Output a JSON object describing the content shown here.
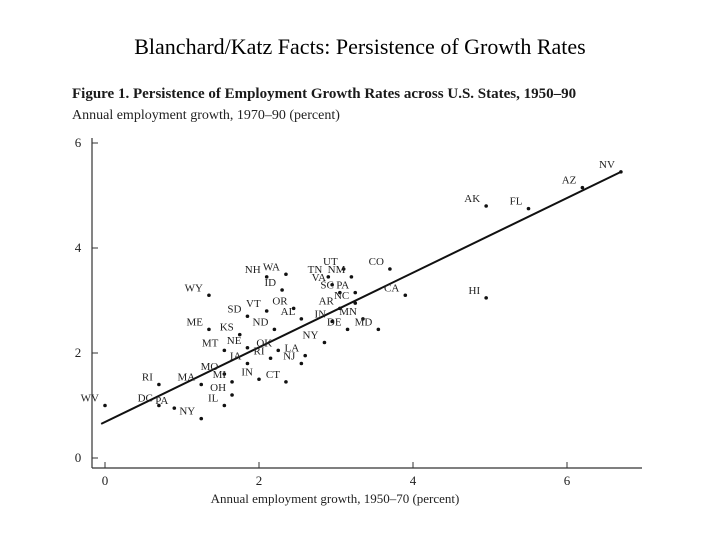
{
  "slide": {
    "title": "Blanchard/Katz Facts:  Persistence of Growth Rates"
  },
  "chart_data": {
    "type": "scatter",
    "title": "Figure 1.  Persistence of Employment Growth Rates across U.S. States, 1950–90",
    "ylabel": "Annual employment growth, 1970–90 (percent)",
    "xlabel": "Annual employment growth, 1950–70 (percent)",
    "xlim": [
      -0.2,
      6.8
    ],
    "ylim": [
      0,
      6
    ],
    "xticks": [
      0,
      2,
      4,
      6
    ],
    "yticks": [
      0,
      2,
      4,
      6
    ],
    "tick_labels_x": [
      "0",
      "2",
      "4",
      "6"
    ],
    "tick_labels_y": [
      "0",
      "2",
      "4",
      "6"
    ],
    "grid": false,
    "fit_line": {
      "x": [
        -0.05,
        6.7
      ],
      "y": [
        0.65,
        5.45
      ]
    },
    "points": [
      {
        "label": "NV",
        "x": 6.7,
        "y": 5.45
      },
      {
        "label": "AZ",
        "x": 6.2,
        "y": 5.15
      },
      {
        "label": "FL",
        "x": 5.5,
        "y": 4.75
      },
      {
        "label": "AK",
        "x": 4.95,
        "y": 4.8
      },
      {
        "label": "HI",
        "x": 4.95,
        "y": 3.05
      },
      {
        "label": "CA",
        "x": 3.9,
        "y": 3.1
      },
      {
        "label": "CO",
        "x": 3.7,
        "y": 3.6
      },
      {
        "label": "UT",
        "x": 3.1,
        "y": 3.6
      },
      {
        "label": "NM",
        "x": 3.2,
        "y": 3.45
      },
      {
        "label": "TN",
        "x": 2.9,
        "y": 3.45
      },
      {
        "label": "VA",
        "x": 2.95,
        "y": 3.3
      },
      {
        "label": "SC",
        "x": 3.05,
        "y": 3.15
      },
      {
        "label": "PA",
        "x": 3.25,
        "y": 3.15
      },
      {
        "label": "NH",
        "x": 2.1,
        "y": 3.45
      },
      {
        "label": "WA",
        "x": 2.35,
        "y": 3.5
      },
      {
        "label": "ID",
        "x": 2.3,
        "y": 3.2
      },
      {
        "label": "WY",
        "x": 1.35,
        "y": 3.1
      },
      {
        "label": "OR",
        "x": 2.45,
        "y": 2.85
      },
      {
        "label": "VT",
        "x": 2.1,
        "y": 2.8
      },
      {
        "label": "SD",
        "x": 1.85,
        "y": 2.7
      },
      {
        "label": "AL",
        "x": 2.55,
        "y": 2.65
      },
      {
        "label": "AR",
        "x": 3.05,
        "y": 2.85
      },
      {
        "label": "NC",
        "x": 3.25,
        "y": 2.95
      },
      {
        "label": "IN",
        "x": 2.95,
        "y": 2.6
      },
      {
        "label": "MN",
        "x": 3.35,
        "y": 2.65
      },
      {
        "label": "DE",
        "x": 3.15,
        "y": 2.45
      },
      {
        "label": "MD",
        "x": 3.55,
        "y": 2.45
      },
      {
        "label": "ME",
        "x": 1.35,
        "y": 2.45
      },
      {
        "label": "KS",
        "x": 1.75,
        "y": 2.35
      },
      {
        "label": "ND",
        "x": 2.2,
        "y": 2.45
      },
      {
        "label": "NY",
        "x": 2.85,
        "y": 2.2
      },
      {
        "label": "MT",
        "x": 1.55,
        "y": 2.05
      },
      {
        "label": "NE",
        "x": 1.85,
        "y": 2.1
      },
      {
        "label": "OK",
        "x": 2.25,
        "y": 2.05
      },
      {
        "label": "RI",
        "x": 2.15,
        "y": 1.9
      },
      {
        "label": "LA",
        "x": 2.6,
        "y": 1.95
      },
      {
        "label": "IA",
        "x": 1.85,
        "y": 1.8
      },
      {
        "label": "NJ",
        "x": 2.55,
        "y": 1.8
      },
      {
        "label": "MO",
        "x": 1.55,
        "y": 1.6
      },
      {
        "label": "MA",
        "x": 1.25,
        "y": 1.4
      },
      {
        "label": "MI",
        "x": 1.65,
        "y": 1.45
      },
      {
        "label": "IN",
        "x": 2.0,
        "y": 1.5
      },
      {
        "label": "CT",
        "x": 2.35,
        "y": 1.45
      },
      {
        "label": "RI",
        "x": 0.7,
        "y": 1.4
      },
      {
        "label": "OH",
        "x": 1.65,
        "y": 1.2
      },
      {
        "label": "IL",
        "x": 1.55,
        "y": 1.0
      },
      {
        "label": "WV",
        "x": 0.0,
        "y": 1.0
      },
      {
        "label": "DC",
        "x": 0.7,
        "y": 1.0
      },
      {
        "label": "PA",
        "x": 0.9,
        "y": 0.95
      },
      {
        "label": "NY",
        "x": 1.25,
        "y": 0.75
      }
    ]
  }
}
